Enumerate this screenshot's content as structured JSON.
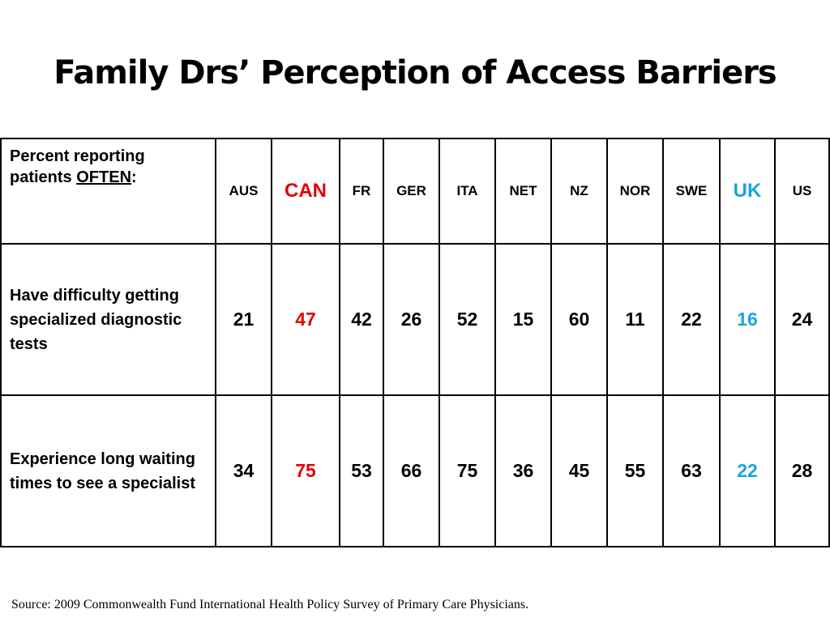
{
  "title": "Family Drs’ Perception of Access Barriers",
  "table": {
    "header_label_prefix": "Percent reporting patients ",
    "header_label_emphasis": "OFTEN",
    "header_label_suffix": ":",
    "countries": [
      {
        "code": "AUS",
        "color": "#000000"
      },
      {
        "code": "CAN",
        "color": "#e60000"
      },
      {
        "code": "FR",
        "color": "#000000"
      },
      {
        "code": "GER",
        "color": "#000000"
      },
      {
        "code": "ITA",
        "color": "#000000"
      },
      {
        "code": "NET",
        "color": "#000000"
      },
      {
        "code": "NZ",
        "color": "#000000"
      },
      {
        "code": "NOR",
        "color": "#000000"
      },
      {
        "code": "SWE",
        "color": "#000000"
      },
      {
        "code": "UK",
        "color": "#1aa3e0"
      },
      {
        "code": "US",
        "color": "#000000"
      }
    ],
    "rows": [
      {
        "label": "Have difficulty getting specialized diagnostic tests",
        "values": [
          "21",
          "47",
          "42",
          "26",
          "52",
          "15",
          "60",
          "11",
          "22",
          "16",
          "24"
        ]
      },
      {
        "label": "Experience long waiting times to see a specialist",
        "values": [
          "34",
          "75",
          "53",
          "66",
          "75",
          "36",
          "45",
          "55",
          "63",
          "22",
          "28"
        ]
      }
    ]
  },
  "source": "Source: 2009 Commonwealth Fund International Health Policy Survey of Primary Care Physicians."
}
